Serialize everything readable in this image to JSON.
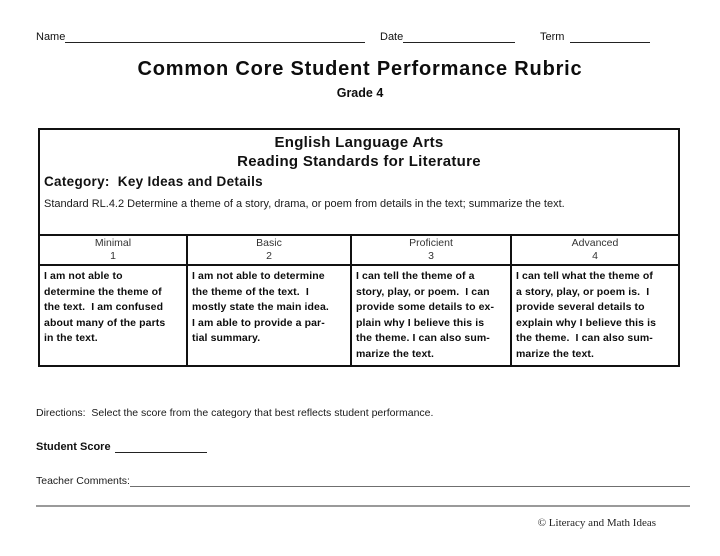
{
  "fields": {
    "name_label": "Name",
    "date_label": "Date",
    "term_label": "Term"
  },
  "header": {
    "title": "Common Core Student Performance Rubric",
    "subtitle": "Grade 4"
  },
  "rubric": {
    "subject": "English Language Arts",
    "strand": "Reading Standards for Literature",
    "category": "Category:  Key Ideas and Details",
    "standard": "Standard RL.4.2 Determine a theme of a story, drama, or poem from details in the text; summarize the text.",
    "levels": [
      {
        "name": "Minimal",
        "score": "1",
        "description": "I am not able to\ndetermine the theme of\nthe text.  I am confused\nabout many of the parts\nin the text."
      },
      {
        "name": "Basic",
        "score": "2",
        "description": "I am not able to determine\nthe theme of the text.  I\nmostly state the main idea.\nI am able to provide a par-\ntial summary."
      },
      {
        "name": "Proficient",
        "score": "3",
        "description": "I can tell the theme of a\nstory, play, or poem.  I can\nprovide some details to ex-\nplain why I believe this is\nthe theme. I can also sum-\nmarize the text."
      },
      {
        "name": "Advanced",
        "score": "4",
        "description": "I can tell what the theme of\na story, play, or poem is.  I\nprovide several details to\nexplain why I believe this is\nthe theme.  I can also sum-\nmarize the text."
      }
    ]
  },
  "footer": {
    "directions": "Directions:  Select the score from the category that best reflects student performance.",
    "student_score_label": "Student Score",
    "teacher_comments_label": "Teacher Comments:",
    "copyright": "© Literacy and Math Ideas"
  }
}
